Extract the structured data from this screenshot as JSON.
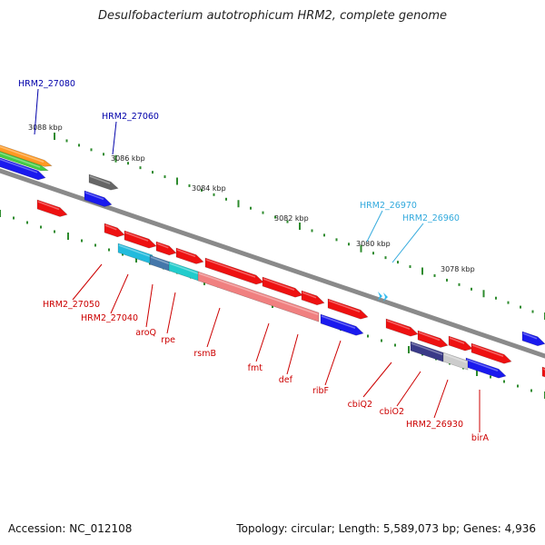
{
  "title": "Desulfobacterium autotrophicum HRM2, complete genome",
  "footer": {
    "accession": "Accession: NC_012108",
    "summary": "Topology: circular; Length: 5,589,073 bp; Genes: 4,936"
  },
  "colors": {
    "backbone": "#8a8a8a",
    "tick": "#2e8b2e",
    "red": "#ee1111",
    "blue": "#1a1aee",
    "light_red": "#f08080",
    "cyan": "#22bbdd",
    "teal": "#22cccc",
    "steel_blue": "#4477aa",
    "dark_gray": "#666666",
    "light_gray": "#cccccc",
    "navy": "#3a3a88",
    "orange": "#ff9922",
    "green": "#44cc44",
    "label_red": "#cc0000",
    "label_blue": "#0000aa",
    "label_cyan": "#33aadd"
  },
  "kbp_labels": [
    "3088 kbp",
    "3086 kbp",
    "3084 kbp",
    "3082 kbp",
    "3080 kbp",
    "3078 kbp"
  ],
  "gene_labels": [
    "HRM2_27080",
    "HRM2_27060",
    "HRM2_26970",
    "HRM2_26960",
    "HRM2_27050",
    "HRM2_27040",
    "aroQ",
    "rpe",
    "rsmB",
    "fmt",
    "def",
    "ribF",
    "cbiQ2",
    "cbiO2",
    "HRM2_26930",
    "birA"
  ]
}
